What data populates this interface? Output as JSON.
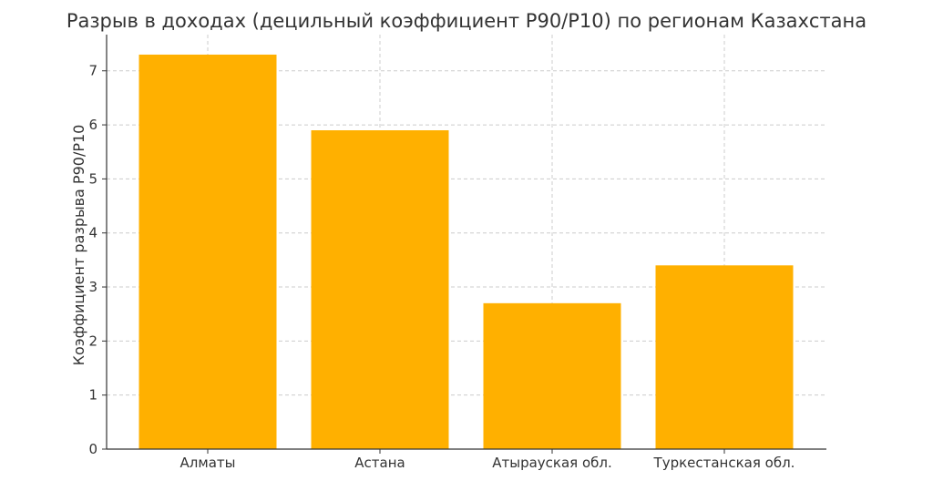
{
  "chart_data": {
    "type": "bar",
    "title": "Разрыв в доходах (децильный коэффициент P90/P10) по регионам Казахстана",
    "xlabel": "",
    "ylabel": "Коэффициент разрыва P90/P10",
    "categories": [
      "Алматы",
      "Астана",
      "Атырауская обл.",
      "Туркестанская обл."
    ],
    "values": [
      7.3,
      5.9,
      2.7,
      3.4
    ],
    "ylim": [
      0,
      7.67
    ],
    "yticks": [
      "0",
      "1",
      "2",
      "3",
      "4",
      "5",
      "6",
      "7"
    ],
    "grid": true,
    "bar_color": "#FFB000"
  }
}
